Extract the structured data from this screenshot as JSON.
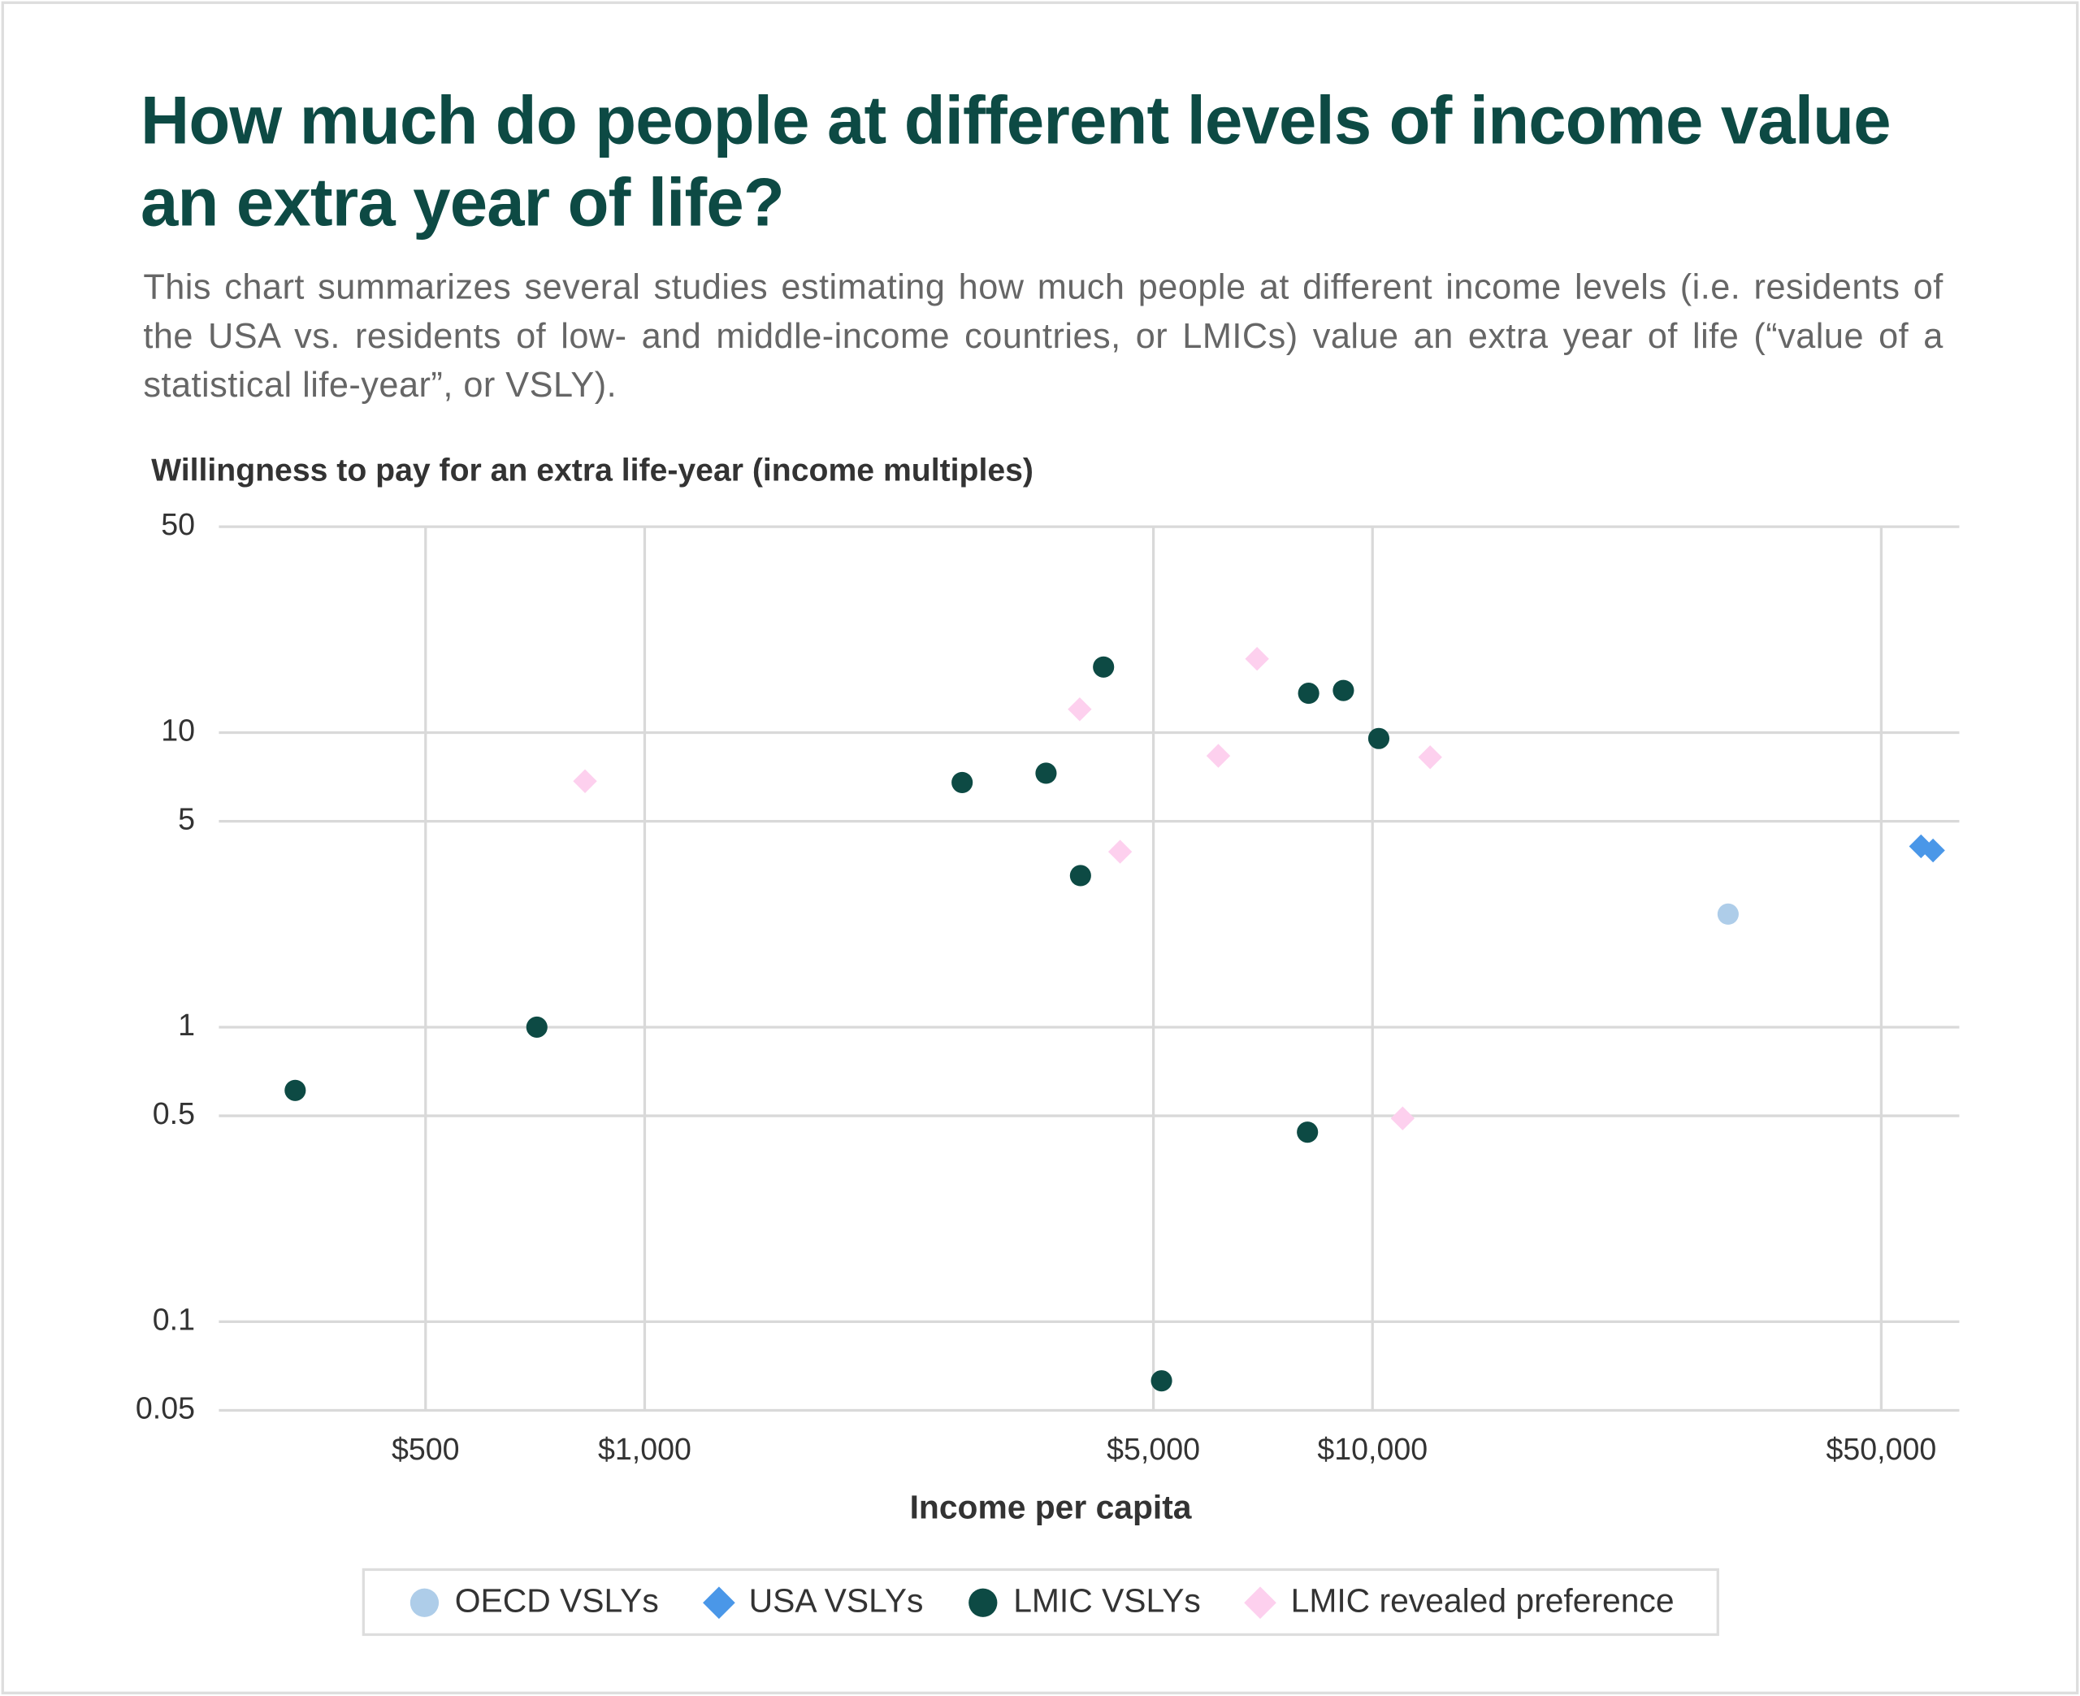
{
  "chart_data": {
    "type": "scatter",
    "title": "How much do people at different levels of income value an extra year of life?",
    "subtitle": "This chart summarizes several studies estimating how much people at different income levels (i.e. residents of the USA vs. residents of low- and middle-income countries, or LMICs) value an extra year of life (“value of a statistical life-year”, or VSLY).",
    "y_label": "Willingness to pay for an extra life-year (income multiples)",
    "x_label": "Income per capita",
    "x_log": true,
    "y_log": true,
    "grid": true,
    "legend": "bottom",
    "xlim": [
      260,
      64000
    ],
    "xticks": [
      {
        "value": 500,
        "label": "$500"
      },
      {
        "value": 1000,
        "label": "$1,000"
      },
      {
        "value": 5000,
        "label": "$5,000"
      },
      {
        "value": 10000,
        "label": "$10,000"
      },
      {
        "value": 50000,
        "label": "$50,000"
      }
    ],
    "ylim": [
      0.05,
      50
    ],
    "yticks": [
      0.05,
      0.1,
      0.5,
      1,
      5,
      10,
      50
    ],
    "series": [
      {
        "name": "OECD VSLYs",
        "color": "#aecde9",
        "marker": "circle",
        "x": [
          30800
        ],
        "values": [
          2.42
        ]
      },
      {
        "name": "USA VSLYs",
        "color": "#4a97e8",
        "marker": "diamond",
        "x": [
          56700,
          58900
        ],
        "values": [
          4.11,
          3.98
        ]
      },
      {
        "name": "LMIC VSLYs",
        "color": "#0d4a44",
        "marker": "circle",
        "x": [
          331,
          711,
          2730,
          3560,
          3970,
          4270,
          5130,
          8170,
          8140,
          9120,
          10200
        ],
        "values": [
          0.61,
          1,
          6.77,
          7.28,
          3.27,
          16.7,
          0.063,
          13.6,
          0.44,
          13.9,
          9.55
        ]
      },
      {
        "name": "LMIC revealed preference",
        "color": "#fdd0ee",
        "marker": "diamond",
        "x": [
          828,
          3960,
          4500,
          6140,
          6940,
          11000,
          12000
        ],
        "values": [
          6.84,
          12.0,
          3.94,
          8.34,
          17.8,
          0.49,
          8.25
        ]
      }
    ]
  }
}
